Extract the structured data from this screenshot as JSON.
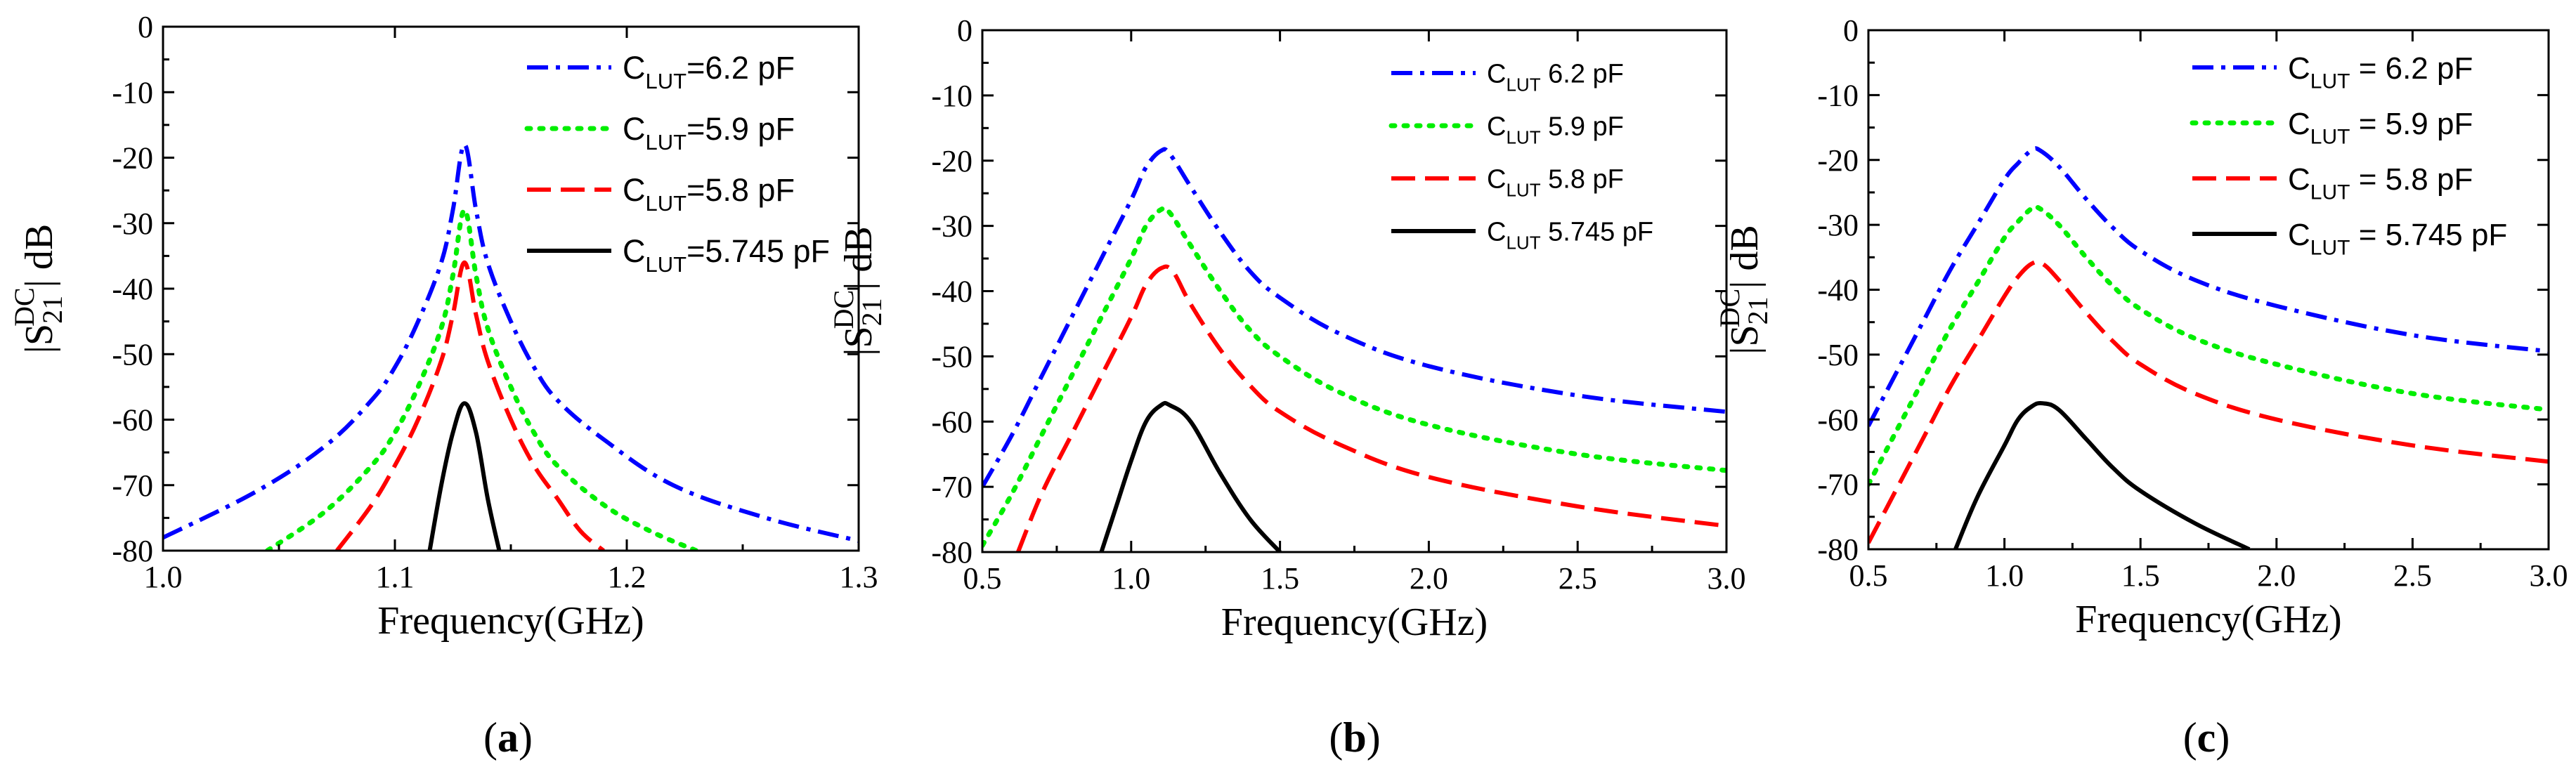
{
  "chart_data": [
    {
      "type": "line",
      "panel_label": "a",
      "xlabel": "Frequency(GHz)",
      "ylabel": "|S21DC| dB",
      "xlim": [
        1.0,
        1.3
      ],
      "ylim": [
        -80,
        0
      ],
      "xticks": [
        "1.0",
        "1.1",
        "1.2",
        "1.3"
      ],
      "yticks": [
        "0",
        "-10",
        "-20",
        "-30",
        "-40",
        "-50",
        "-60",
        "-70",
        "-80"
      ],
      "legend_position": "top-right",
      "series": [
        {
          "name": "CLUT=6.2 pF",
          "sub": "LUT",
          "legend": "=6.2 pF",
          "color": "#0000ff",
          "style": "dashdot",
          "x": [
            1.0,
            1.04,
            1.07,
            1.09,
            1.1,
            1.11,
            1.12,
            1.125,
            1.13,
            1.135,
            1.14,
            1.15,
            1.16,
            1.17,
            1.19,
            1.22,
            1.26,
            1.3
          ],
          "y": [
            -78,
            -71,
            -64,
            -57,
            -52,
            -45,
            -36,
            -28,
            -18,
            -28,
            -36,
            -45,
            -52,
            -57,
            -63,
            -70,
            -75,
            -78.5
          ]
        },
        {
          "name": "CLUT=5.9 pF",
          "sub": "LUT",
          "legend": "=5.9 pF",
          "color": "#00ee00",
          "style": "dotted",
          "x": [
            1.045,
            1.07,
            1.09,
            1.1,
            1.11,
            1.12,
            1.125,
            1.13,
            1.135,
            1.14,
            1.15,
            1.16,
            1.17,
            1.19,
            1.21,
            1.23
          ],
          "y": [
            -80,
            -74,
            -67,
            -62,
            -55,
            -46,
            -38,
            -28,
            -38,
            -46,
            -55,
            -62,
            -67,
            -73,
            -77,
            -80
          ]
        },
        {
          "name": "CLUT=5.8 pF",
          "sub": "LUT",
          "legend": "=5.8 pF",
          "color": "#ff0000",
          "style": "dashed",
          "x": [
            1.075,
            1.09,
            1.1,
            1.11,
            1.12,
            1.125,
            1.13,
            1.135,
            1.14,
            1.15,
            1.16,
            1.17,
            1.18,
            1.19
          ],
          "y": [
            -80,
            -73,
            -67,
            -60,
            -51,
            -44,
            -36,
            -44,
            -51,
            -60,
            -67,
            -72,
            -77,
            -80
          ]
        },
        {
          "name": "CLUT=5.745 pF",
          "sub": "LUT",
          "legend": "=5.745 pF",
          "color": "#000000",
          "style": "solid",
          "x": [
            1.115,
            1.12,
            1.125,
            1.13,
            1.135,
            1.14,
            1.145
          ],
          "y": [
            -80,
            -70,
            -62,
            -57.5,
            -62,
            -72,
            -80
          ]
        }
      ]
    },
    {
      "type": "line",
      "panel_label": "b",
      "xlabel": "Frequency(GHz)",
      "ylabel": "|S21DC| dB",
      "xlim": [
        0.5,
        3.0
      ],
      "ylim": [
        -80,
        0
      ],
      "xticks": [
        "0.5",
        "1.0",
        "1.5",
        "2.0",
        "2.5",
        "3.0"
      ],
      "yticks": [
        "0",
        "-10",
        "-20",
        "-30",
        "-40",
        "-50",
        "-60",
        "-70",
        "-80"
      ],
      "legend_position": "top-right",
      "series": [
        {
          "name": "CLUT 6.2 pF",
          "sub": "LUT",
          "legend": " 6.2 pF",
          "color": "#0000ff",
          "style": "dashdot",
          "x": [
            0.5,
            0.6,
            0.7,
            0.8,
            0.9,
            1.0,
            1.05,
            1.1,
            1.13,
            1.2,
            1.3,
            1.4,
            1.5,
            1.7,
            2.0,
            2.5,
            3.0
          ],
          "y": [
            -70,
            -62,
            -53,
            -44,
            -35,
            -26,
            -21,
            -18.5,
            -19,
            -24,
            -31,
            -37,
            -41,
            -46.5,
            -51.5,
            -56,
            -58.5
          ]
        },
        {
          "name": "CLUT 5.9 pF",
          "sub": "LUT",
          "legend": " 5.9 pF",
          "color": "#00ee00",
          "style": "dotted",
          "x": [
            0.5,
            0.6,
            0.7,
            0.8,
            0.9,
            1.0,
            1.05,
            1.1,
            1.13,
            1.2,
            1.3,
            1.4,
            1.5,
            1.7,
            2.0,
            2.5,
            3.0
          ],
          "y": [
            -79,
            -71,
            -62,
            -53,
            -44,
            -35,
            -30,
            -27.5,
            -28,
            -33,
            -40,
            -46,
            -50,
            -55.5,
            -60.5,
            -65,
            -67.5
          ]
        },
        {
          "name": "CLUT 5.8 pF",
          "sub": "LUT",
          "legend": " 5.8 pF",
          "color": "#ff0000",
          "style": "dashed",
          "x": [
            0.62,
            0.7,
            0.8,
            0.9,
            1.0,
            1.05,
            1.1,
            1.14,
            1.2,
            1.3,
            1.4,
            1.5,
            1.7,
            2.0,
            2.5,
            3.0
          ],
          "y": [
            -80,
            -71,
            -62,
            -53,
            -44,
            -39,
            -36.5,
            -37,
            -42,
            -49,
            -54.5,
            -58.5,
            -63.5,
            -68.5,
            -73,
            -76
          ]
        },
        {
          "name": "CLUT 5.745 pF",
          "sub": "LUT",
          "legend": " 5.745 pF",
          "color": "#000000",
          "style": "solid",
          "x": [
            0.9,
            0.95,
            1.0,
            1.05,
            1.1,
            1.13,
            1.2,
            1.3,
            1.4,
            1.5
          ],
          "y": [
            -80,
            -73,
            -66,
            -60,
            -57.5,
            -57.5,
            -60,
            -68,
            -75,
            -80
          ]
        }
      ]
    },
    {
      "type": "line",
      "panel_label": "c",
      "xlabel": "Frequency(GHz)",
      "ylabel": "|S21DC| dB",
      "xlim": [
        0.5,
        3.0
      ],
      "ylim": [
        -80,
        0
      ],
      "xticks": [
        "0.5",
        "1.0",
        "1.5",
        "2.0",
        "2.5",
        "3.0"
      ],
      "yticks": [
        "0",
        "-10",
        "-20",
        "-30",
        "-40",
        "-50",
        "-60",
        "-70",
        "-80"
      ],
      "legend_position": "top-right",
      "series": [
        {
          "name": "CLUT = 6.2 pF",
          "sub": "LUT",
          "legend": " = 6.2 pF",
          "color": "#0000ff",
          "style": "dashdot",
          "x": [
            0.5,
            0.6,
            0.7,
            0.8,
            0.9,
            1.0,
            1.05,
            1.1,
            1.13,
            1.2,
            1.3,
            1.4,
            1.5,
            1.7,
            2.0,
            2.5,
            3.0
          ],
          "y": [
            -61,
            -53,
            -45,
            -37,
            -30,
            -23,
            -20.5,
            -18.5,
            -18.5,
            -21,
            -26,
            -30.5,
            -34,
            -38.5,
            -42.5,
            -47,
            -49.5
          ]
        },
        {
          "name": "CLUT = 5.9 pF",
          "sub": "LUT",
          "legend": " = 5.9 pF",
          "color": "#00ee00",
          "style": "dotted",
          "x": [
            0.5,
            0.6,
            0.7,
            0.8,
            0.9,
            1.0,
            1.05,
            1.1,
            1.13,
            1.2,
            1.3,
            1.4,
            1.5,
            1.7,
            2.0,
            2.5,
            3.0
          ],
          "y": [
            -70,
            -62,
            -54,
            -46,
            -39,
            -32,
            -29.5,
            -27.5,
            -27.5,
            -30,
            -35,
            -39.5,
            -43,
            -47.5,
            -51.5,
            -56,
            -58.5
          ]
        },
        {
          "name": "CLUT = 5.8 pF",
          "sub": "LUT",
          "legend": " = 5.8 pF",
          "color": "#ff0000",
          "style": "dashed",
          "x": [
            0.5,
            0.6,
            0.7,
            0.8,
            0.9,
            1.0,
            1.05,
            1.1,
            1.14,
            1.2,
            1.3,
            1.4,
            1.5,
            1.7,
            2.0,
            2.5,
            3.0
          ],
          "y": [
            -79,
            -71,
            -63,
            -55,
            -48,
            -41,
            -38,
            -36,
            -36,
            -38.5,
            -43.5,
            -48,
            -51.5,
            -56,
            -60,
            -64,
            -66.5
          ]
        },
        {
          "name": "CLUT = 5.745 pF",
          "sub": "LUT",
          "legend": " = 5.745 pF",
          "color": "#000000",
          "style": "solid",
          "x": [
            0.82,
            0.9,
            1.0,
            1.05,
            1.1,
            1.14,
            1.2,
            1.3,
            1.4,
            1.5,
            1.7,
            1.9
          ],
          "y": [
            -80,
            -72,
            -64,
            -60,
            -58,
            -57.5,
            -58.5,
            -63,
            -67.5,
            -71,
            -76,
            -80
          ]
        }
      ]
    }
  ]
}
